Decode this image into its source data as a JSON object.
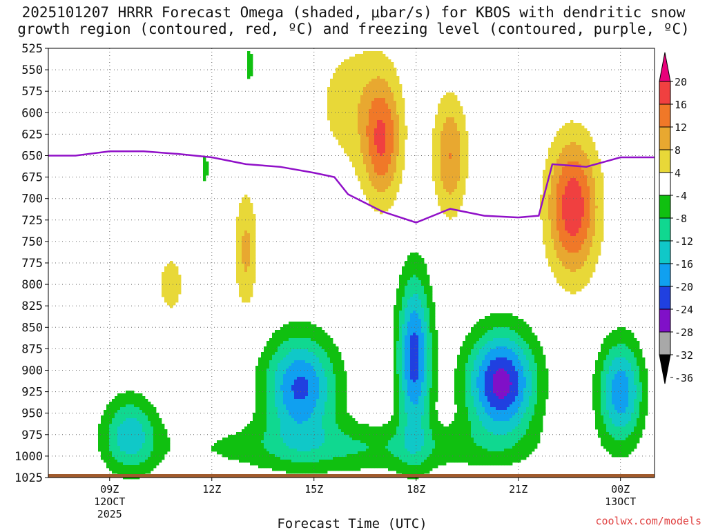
{
  "title_line1": "2025101207 HRRR Forecast Omega (shaded, μbar/s) for KBOS with dendritic snow",
  "title_line2": "growth region (contoured, red, ºC) and freezing level (contoured, purple, ºC)",
  "credit": "coolwx.com/models",
  "chart_data": {
    "type": "heatmap",
    "title": "2025101207 HRRR Forecast Omega (shaded, μbar/s) for KBOS with dendritic snow growth region (contoured, red, ºC) and freezing level (contoured, purple, ºC)",
    "xlabel": "Forecast Time (UTC)",
    "ylabel": "",
    "x_range_hours": [
      7.2,
      25.0
    ],
    "y_range_mb": [
      525,
      1025
    ],
    "y_ticks": [
      "525",
      "550",
      "575",
      "600",
      "625",
      "650",
      "675",
      "700",
      "725",
      "750",
      "775",
      "800",
      "825",
      "850",
      "875",
      "900",
      "925",
      "950",
      "975",
      "1000",
      "1025"
    ],
    "x_ticks": [
      {
        "hour": 9,
        "lines": [
          "09Z",
          "12OCT",
          "2025"
        ]
      },
      {
        "hour": 12,
        "lines": [
          "12Z"
        ]
      },
      {
        "hour": 15,
        "lines": [
          "15Z"
        ]
      },
      {
        "hour": 18,
        "lines": [
          "18Z"
        ]
      },
      {
        "hour": 21,
        "lines": [
          "21Z"
        ]
      },
      {
        "hour": 24,
        "lines": [
          "00Z",
          "13OCT"
        ]
      }
    ],
    "colorbar": {
      "labels": [
        "20",
        "16",
        "12",
        "8",
        "4",
        "-4",
        "-8",
        "-12",
        "-16",
        "-20",
        "-24",
        "-28",
        "-32",
        "-36"
      ],
      "colors": [
        "#e8007a",
        "#f04040",
        "#f07828",
        "#e8a830",
        "#e8d838",
        "#ffffff",
        "#10c010",
        "#10d890",
        "#10c8c8",
        "#10a0f0",
        "#2040e0",
        "#8010c8",
        "#a8a8a8",
        "#000000"
      ]
    },
    "omega_fields": [
      {
        "name": "negative-lobe-0930",
        "hour": 9.6,
        "pressure": 975,
        "peak": -14,
        "sx": 0.8,
        "sy": 45
      },
      {
        "name": "negative-lobe-1500",
        "hour": 14.6,
        "pressure": 920,
        "peak": -21,
        "sx": 1.05,
        "sy": 60
      },
      {
        "name": "negative-lobe-1800",
        "hour": 17.95,
        "pressure": 885,
        "peak": -22,
        "sx": 0.5,
        "sy": 95
      },
      {
        "name": "negative-lobe-2030",
        "hour": 20.5,
        "pressure": 915,
        "peak": -26,
        "sx": 1.0,
        "sy": 60
      },
      {
        "name": "negative-lobe-0000",
        "hour": 24.0,
        "pressure": 925,
        "peak": -19,
        "sx": 0.65,
        "sy": 60
      },
      {
        "name": "negative-band-low",
        "hour": 16.0,
        "pressure": 990,
        "peak": -8,
        "sx": 4.8,
        "sy": 30
      },
      {
        "name": "negative-spike-1130",
        "hour": 11.8,
        "pressure": 665,
        "peak": -5,
        "sx": 0.15,
        "sy": 35
      },
      {
        "name": "negative-spike-1330",
        "hour": 13.1,
        "pressure": 545,
        "peak": -5,
        "sx": 0.2,
        "sy": 35
      },
      {
        "name": "positive-lobe-1300",
        "hour": 13.0,
        "pressure": 760,
        "peak": 9,
        "sx": 0.35,
        "sy": 70
      },
      {
        "name": "positive-lobe-1030",
        "hour": 10.8,
        "pressure": 800,
        "peak": 5,
        "sx": 0.6,
        "sy": 55
      },
      {
        "name": "positive-lobe-1700",
        "hour": 17.0,
        "pressure": 635,
        "peak": 14,
        "sx": 0.55,
        "sy": 70
      },
      {
        "name": "positive-lobe-1900",
        "hour": 19.0,
        "pressure": 650,
        "peak": 12,
        "sx": 0.5,
        "sy": 70
      },
      {
        "name": "positive-lobe-2200",
        "hour": 22.6,
        "pressure": 710,
        "peak": 19,
        "sx": 0.75,
        "sy": 80
      },
      {
        "name": "positive-broad-1600",
        "hour": 16.2,
        "pressure": 590,
        "peak": 6,
        "sx": 1.3,
        "sy": 85
      }
    ],
    "freezing_level": {
      "color": "#9010c8",
      "hours": [
        7.2,
        8.0,
        9.0,
        10.0,
        11.0,
        12.0,
        13.0,
        14.0,
        15.0,
        15.6,
        16.0,
        17.0,
        18.0,
        19.0,
        20.0,
        21.0,
        21.6,
        22.0,
        23.0,
        24.0,
        25.0
      ],
      "pressure_mb": [
        650,
        650,
        645,
        645,
        648,
        652,
        660,
        663,
        670,
        675,
        695,
        715,
        728,
        712,
        720,
        722,
        720,
        660,
        663,
        652,
        652
      ]
    }
  }
}
